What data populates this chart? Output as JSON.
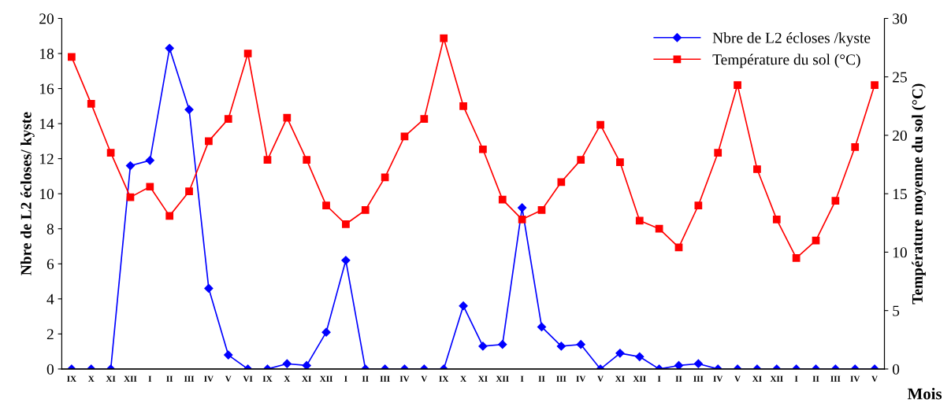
{
  "chart_data": {
    "type": "line",
    "xlabel": "Mois",
    "ylabel": "Nbre de L2 écloses/ kyste",
    "y2label": "Température moyenne du sol (°C)",
    "categories": [
      "IX",
      "X",
      "XI",
      "XII",
      "I",
      "II",
      "III",
      "IV",
      "V",
      "VI",
      "IX",
      "X",
      "XI",
      "XII",
      "I",
      "II",
      "III",
      "IV",
      "V",
      "IX",
      "X",
      "XI",
      "XII",
      "I",
      "II",
      "III",
      "IV",
      "V",
      "XI",
      "XII",
      "I",
      "II",
      "III",
      "IV",
      "V",
      "XI",
      "XII",
      "I",
      "II",
      "III",
      "IV",
      "V"
    ],
    "series": [
      {
        "name": "Nbre de L2 écloses /kyste",
        "color": "#0000ff",
        "marker": "diamond",
        "values": [
          0,
          0,
          0,
          11.6,
          11.9,
          18.3,
          14.8,
          4.6,
          0.8,
          0,
          0,
          0.3,
          0.2,
          2.1,
          6.2,
          0,
          0,
          0,
          0,
          0,
          3.6,
          1.3,
          1.4,
          9.2,
          2.4,
          1.3,
          1.4,
          0,
          0.9,
          0.7,
          0,
          0.2,
          0.3,
          0,
          0,
          0,
          0,
          0,
          0,
          0,
          0,
          0
        ]
      },
      {
        "name": "Température du sol (°C)",
        "color": "#ff0000",
        "marker": "square",
        "axis": "y2",
        "values": [
          26.7,
          22.7,
          18.5,
          14.7,
          15.6,
          13.1,
          15.2,
          19.5,
          21.4,
          27.0,
          17.9,
          21.5,
          17.9,
          14.0,
          12.4,
          13.6,
          16.4,
          19.9,
          21.4,
          28.3,
          22.5,
          18.8,
          14.5,
          12.8,
          13.6,
          16.0,
          17.9,
          20.9,
          17.7,
          12.7,
          12.0,
          10.4,
          14.0,
          18.5,
          24.3,
          17.1,
          12.8,
          9.5,
          11.0,
          14.4,
          19.0,
          24.3
        ]
      }
    ],
    "ylim": [
      0,
      20
    ],
    "yticks": [
      0,
      2,
      4,
      6,
      8,
      10,
      12,
      14,
      16,
      18,
      20
    ],
    "y2lim": [
      0,
      30
    ],
    "y2ticks": [
      0,
      5,
      10,
      15,
      20,
      25,
      30
    ],
    "grid": false,
    "legend": "top right",
    "line_style": "solid"
  }
}
